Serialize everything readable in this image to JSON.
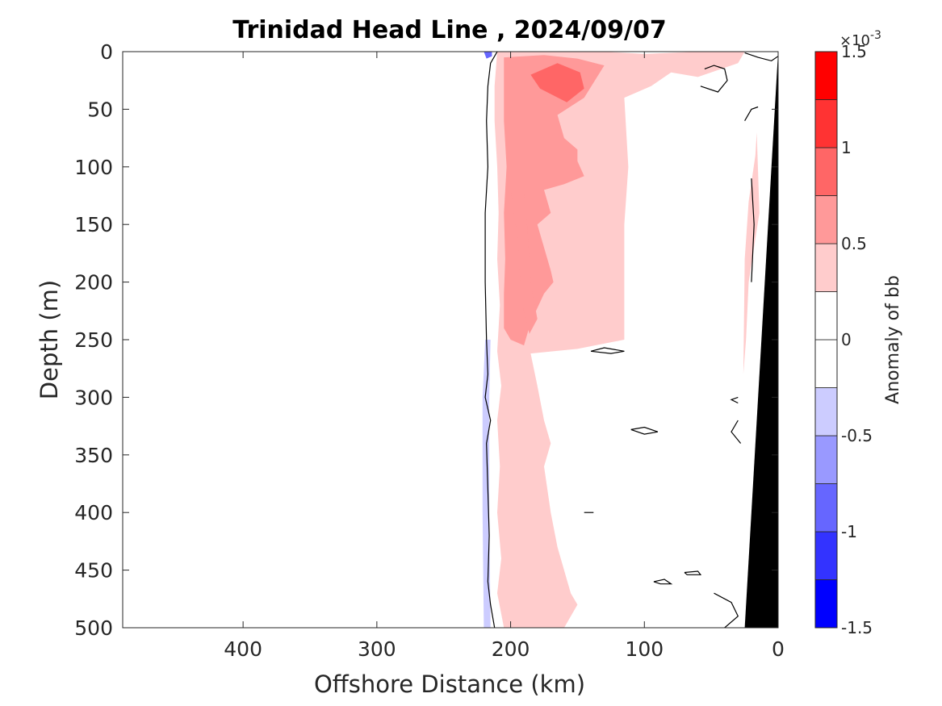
{
  "chart_data": {
    "type": "contour",
    "title": "Trinidad Head Line , 2024/09/07",
    "xlabel": "Offshore Distance (km)",
    "ylabel": "Depth (m)",
    "xlim": [
      490,
      0
    ],
    "ylim": [
      0,
      500
    ],
    "x_reversed": true,
    "y_reversed": true,
    "xticks": [
      400,
      300,
      200,
      100,
      0
    ],
    "xtick_labels": [
      "400",
      "300",
      "200",
      "100",
      "0"
    ],
    "yticks": [
      0,
      50,
      100,
      150,
      200,
      250,
      300,
      350,
      400,
      450,
      500
    ],
    "ytick_labels": [
      "0",
      "50",
      "100",
      "150",
      "200",
      "250",
      "300",
      "350",
      "400",
      "450",
      "500"
    ],
    "grid": false,
    "colorbar": {
      "label": "Anomaly of bb",
      "exponent_label": "×10",
      "exponent_power": "-3",
      "range": [
        -1.5,
        1.5
      ],
      "ticks": [
        -1.5,
        -1,
        -0.5,
        0,
        0.5,
        1,
        1.5
      ],
      "tick_labels": [
        "-1.5",
        "-1",
        "-0.5",
        "0",
        "0.5",
        "1",
        "1.5"
      ],
      "levels": [
        {
          "min": -1.5,
          "max": -1.25,
          "color": "#0000ff"
        },
        {
          "min": -1.25,
          "max": -1.0,
          "color": "#3333ff"
        },
        {
          "min": -1.0,
          "max": -0.75,
          "color": "#6666ff"
        },
        {
          "min": -0.75,
          "max": -0.5,
          "color": "#9999ff"
        },
        {
          "min": -0.5,
          "max": -0.25,
          "color": "#ccccff"
        },
        {
          "min": -0.25,
          "max": 0.0,
          "color": "#ffffff"
        },
        {
          "min": 0.0,
          "max": 0.25,
          "color": "#ffffff"
        },
        {
          "min": 0.25,
          "max": 0.5,
          "color": "#ffcccc"
        },
        {
          "min": 0.5,
          "max": 0.75,
          "color": "#ff9999"
        },
        {
          "min": 0.75,
          "max": 1.0,
          "color": "#ff6666"
        },
        {
          "min": 1.0,
          "max": 1.25,
          "color": "#ff3333"
        },
        {
          "min": 1.25,
          "max": 1.5,
          "color": "#ff0000"
        }
      ]
    },
    "regions": [
      {
        "name": "Weak negative anomaly near 220 km (-0.5 to -0.25)",
        "level": -0.25,
        "color": "#ccccff",
        "points": [
          [
            219,
            250
          ],
          [
            221,
            300
          ],
          [
            221,
            400
          ],
          [
            220,
            500
          ],
          [
            215,
            500
          ],
          [
            216,
            400
          ],
          [
            216,
            300
          ],
          [
            215,
            250
          ]
        ]
      },
      {
        "name": "Strong negative anomaly near surface at 220 km",
        "level": -1.0,
        "color": "#6666ff",
        "points": [
          [
            220,
            0
          ],
          [
            218,
            6
          ],
          [
            214,
            4
          ],
          [
            214,
            0
          ]
        ]
      },
      {
        "name": "Weak positive anomaly band (0.25 to 0.5)",
        "level": 0.25,
        "color": "#ffcccc",
        "points": [
          [
            210,
            0
          ],
          [
            130,
            0
          ],
          [
            100,
            2
          ],
          [
            60,
            0
          ],
          [
            40,
            0
          ],
          [
            25,
            0
          ],
          [
            30,
            10
          ],
          [
            60,
            22
          ],
          [
            80,
            18
          ],
          [
            95,
            30
          ],
          [
            115,
            40
          ],
          [
            112,
            100
          ],
          [
            115,
            150
          ],
          [
            115,
            200
          ],
          [
            115,
            250
          ],
          [
            150,
            258
          ],
          [
            185,
            262
          ],
          [
            180,
            290
          ],
          [
            175,
            320
          ],
          [
            170,
            340
          ],
          [
            175,
            360
          ],
          [
            170,
            400
          ],
          [
            165,
            430
          ],
          [
            155,
            470
          ],
          [
            150,
            480
          ],
          [
            160,
            500
          ],
          [
            205,
            500
          ],
          [
            210,
            470
          ],
          [
            207,
            440
          ],
          [
            210,
            400
          ],
          [
            208,
            360
          ],
          [
            210,
            320
          ],
          [
            207,
            290
          ],
          [
            210,
            260
          ],
          [
            208,
            220
          ],
          [
            210,
            180
          ],
          [
            209,
            140
          ],
          [
            210,
            100
          ],
          [
            212,
            60
          ],
          [
            212,
            30
          ]
        ]
      },
      {
        "name": "Weak positive anomaly along coast",
        "level": 0.25,
        "color": "#ffcccc",
        "points": [
          [
            16,
            70
          ],
          [
            14,
            140
          ],
          [
            22,
            200
          ],
          [
            24,
            250
          ],
          [
            26,
            280
          ],
          [
            25,
            180
          ],
          [
            22,
            130
          ],
          [
            17,
            90
          ]
        ]
      },
      {
        "name": "Moderate positive anomaly (0.5 to 0.75)",
        "level": 0.5,
        "color": "#ff9999",
        "points": [
          [
            205,
            5
          ],
          [
            175,
            3
          ],
          [
            150,
            6
          ],
          [
            130,
            12
          ],
          [
            145,
            40
          ],
          [
            165,
            55
          ],
          [
            160,
            75
          ],
          [
            150,
            85
          ],
          [
            150,
            95
          ],
          [
            145,
            108
          ],
          [
            160,
            115
          ],
          [
            175,
            120
          ],
          [
            170,
            140
          ],
          [
            180,
            150
          ],
          [
            175,
            170
          ],
          [
            170,
            190
          ],
          [
            168,
            200
          ],
          [
            175,
            210
          ],
          [
            185,
            235
          ],
          [
            190,
            255
          ],
          [
            200,
            250
          ],
          [
            205,
            240
          ],
          [
            205,
            210
          ],
          [
            204,
            180
          ],
          [
            205,
            140
          ],
          [
            203,
            100
          ],
          [
            205,
            60
          ],
          [
            205,
            30
          ]
        ]
      },
      {
        "name": "Strong positive anomaly (0.75 to 1.0) near 165 km",
        "level": 0.75,
        "color": "#ff6666",
        "points": [
          [
            185,
            20
          ],
          [
            165,
            10
          ],
          [
            148,
            18
          ],
          [
            145,
            32
          ],
          [
            158,
            44
          ],
          [
            178,
            32
          ]
        ]
      },
      {
        "name": "Positive patch inside zero contour near 200 km",
        "level": 0.5,
        "color": "#ff9999",
        "points": [
          [
            200,
            120
          ],
          [
            195,
            160
          ],
          [
            192,
            215
          ],
          [
            186,
            245
          ],
          [
            180,
            232
          ],
          [
            185,
            200
          ],
          [
            187,
            160
          ],
          [
            190,
            120
          ]
        ]
      }
    ],
    "zero_contours": [
      {
        "points": [
          [
            210,
            0
          ],
          [
            215,
            10
          ],
          [
            217,
            30
          ],
          [
            218,
            60
          ],
          [
            217,
            100
          ],
          [
            219,
            140
          ],
          [
            219,
            200
          ],
          [
            218,
            250
          ],
          [
            217,
            280
          ],
          [
            219,
            300
          ],
          [
            215,
            320
          ],
          [
            218,
            340
          ],
          [
            217,
            380
          ],
          [
            216,
            420
          ],
          [
            217,
            460
          ],
          [
            215,
            480
          ],
          [
            212,
            500
          ]
        ]
      },
      {
        "points": [
          [
            25,
            1
          ],
          [
            15,
            5
          ],
          [
            5,
            8
          ],
          [
            0,
            4
          ]
        ]
      },
      {
        "points": [
          [
            55,
            15
          ],
          [
            48,
            12
          ],
          [
            40,
            15
          ],
          [
            38,
            25
          ],
          [
            45,
            35
          ],
          [
            58,
            30
          ]
        ]
      },
      {
        "points": [
          [
            140,
            260
          ],
          [
            130,
            257
          ],
          [
            115,
            260
          ],
          [
            125,
            262
          ],
          [
            140,
            260
          ]
        ]
      },
      {
        "points": [
          [
            110,
            328
          ],
          [
            100,
            326
          ],
          [
            90,
            330
          ],
          [
            100,
            332
          ],
          [
            110,
            328
          ]
        ]
      },
      {
        "points": [
          [
            145,
            400
          ],
          [
            138,
            400
          ]
        ]
      },
      {
        "points": [
          [
            93,
            460
          ],
          [
            85,
            458
          ],
          [
            80,
            462
          ],
          [
            88,
            462
          ],
          [
            93,
            460
          ]
        ]
      },
      {
        "points": [
          [
            70,
            452
          ],
          [
            60,
            451
          ],
          [
            58,
            454
          ],
          [
            68,
            454
          ],
          [
            70,
            452
          ]
        ]
      },
      {
        "points": [
          [
            48,
            470
          ],
          [
            35,
            478
          ],
          [
            30,
            490
          ],
          [
            40,
            500
          ]
        ]
      },
      {
        "points": [
          [
            30,
            300
          ],
          [
            35,
            302
          ],
          [
            30,
            305
          ]
        ]
      },
      {
        "points": [
          [
            30,
            320
          ],
          [
            35,
            330
          ],
          [
            28,
            340
          ]
        ]
      },
      {
        "points": [
          [
            25,
            60
          ],
          [
            20,
            50
          ],
          [
            15,
            48
          ]
        ]
      },
      {
        "points": [
          [
            20,
            110
          ],
          [
            18,
            150
          ],
          [
            20,
            200
          ]
        ]
      }
    ],
    "seafloor": {
      "name": "bathymetry",
      "color": "#000000",
      "points": [
        [
          0,
          0
        ],
        [
          0,
          500
        ],
        [
          25,
          500
        ]
      ]
    }
  }
}
